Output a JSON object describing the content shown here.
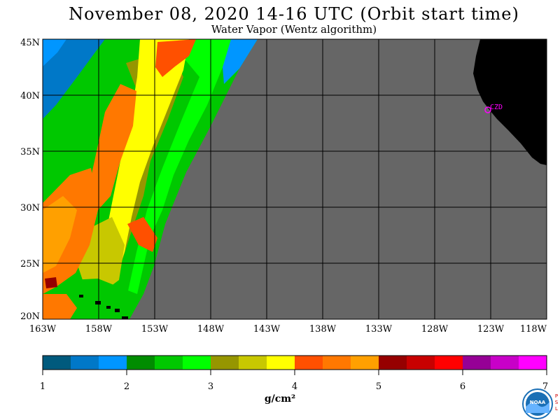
{
  "header": {
    "title": "November 08, 2020  14-16 UTC  (Orbit start time)",
    "subtitle": "Water Vapor (Wentz algorithm)"
  },
  "map": {
    "lat_labels": [
      "45N",
      "40N",
      "35N",
      "30N",
      "25N",
      "20N"
    ],
    "lon_labels": [
      "163W",
      "158W",
      "153W",
      "148W",
      "143W",
      "138W",
      "133W",
      "128W",
      "123W",
      "118W"
    ],
    "station_label": "CZD",
    "no_data_color": "#666666",
    "land_color": "#000000",
    "station_color": "#ff00ff"
  },
  "colorbar": {
    "ticks": [
      "1",
      "2",
      "3",
      "4",
      "5",
      "6",
      "7"
    ],
    "unit": "g/cm²",
    "colors": [
      "#005a7d",
      "#0078c8",
      "#0096ff",
      "#008c00",
      "#00c800",
      "#00ff00",
      "#969600",
      "#c8c800",
      "#ffff00",
      "#ff5000",
      "#ff7800",
      "#ffa000",
      "#960000",
      "#c80000",
      "#ff0000",
      "#960096",
      "#c800c8",
      "#ff00ff"
    ]
  },
  "logos": {
    "noaa": "NOAA",
    "psl": "PSL"
  }
}
